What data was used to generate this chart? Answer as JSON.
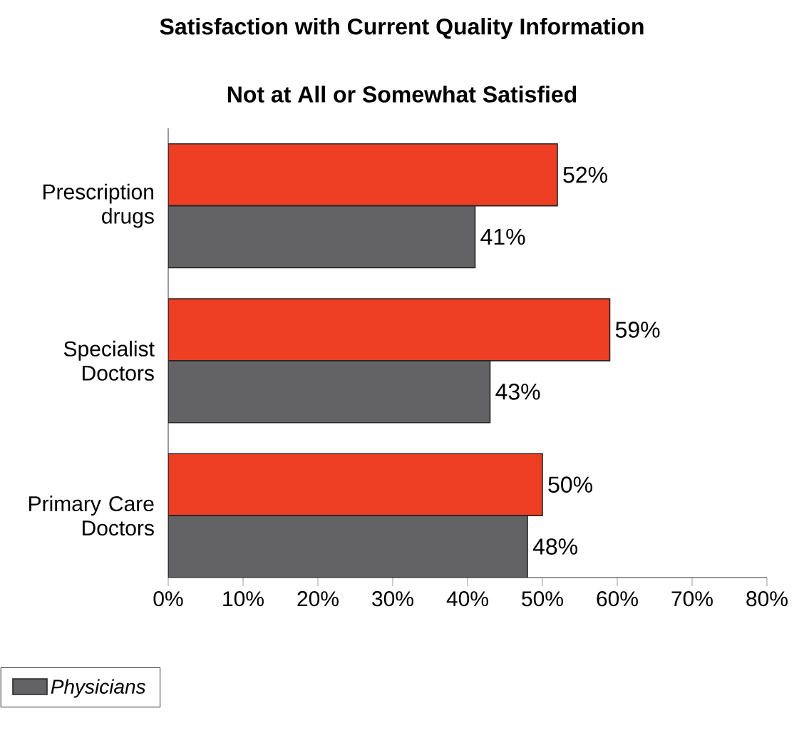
{
  "chart_data": {
    "type": "bar",
    "orientation": "horizontal",
    "title": "Satisfaction with Current Quality Information",
    "subtitle": "Not at All or Somewhat Satisfied",
    "categories": [
      "Prescription drugs",
      "Specialist Doctors",
      "Primary Care Doctors"
    ],
    "series": [
      {
        "color": "#ee3e23",
        "values": [
          52,
          59,
          50
        ],
        "value_labels": [
          "52%",
          "59%",
          "50%"
        ]
      },
      {
        "name": "Physicians",
        "color": "#636265",
        "values": [
          41,
          43,
          48
        ],
        "value_labels": [
          "41%",
          "43%",
          "48%"
        ]
      }
    ],
    "xlim": [
      0,
      80
    ],
    "xticks": [
      {
        "value": 0,
        "label": "0%"
      },
      {
        "value": 10,
        "label": "10%"
      },
      {
        "value": 20,
        "label": "20%"
      },
      {
        "value": 30,
        "label": "30%"
      },
      {
        "value": 40,
        "label": "40%"
      },
      {
        "value": 50,
        "label": "50%"
      },
      {
        "value": 60,
        "label": "60%"
      },
      {
        "value": 70,
        "label": "70%"
      },
      {
        "value": 80,
        "label": "80%"
      }
    ],
    "legend": "bottom left"
  }
}
